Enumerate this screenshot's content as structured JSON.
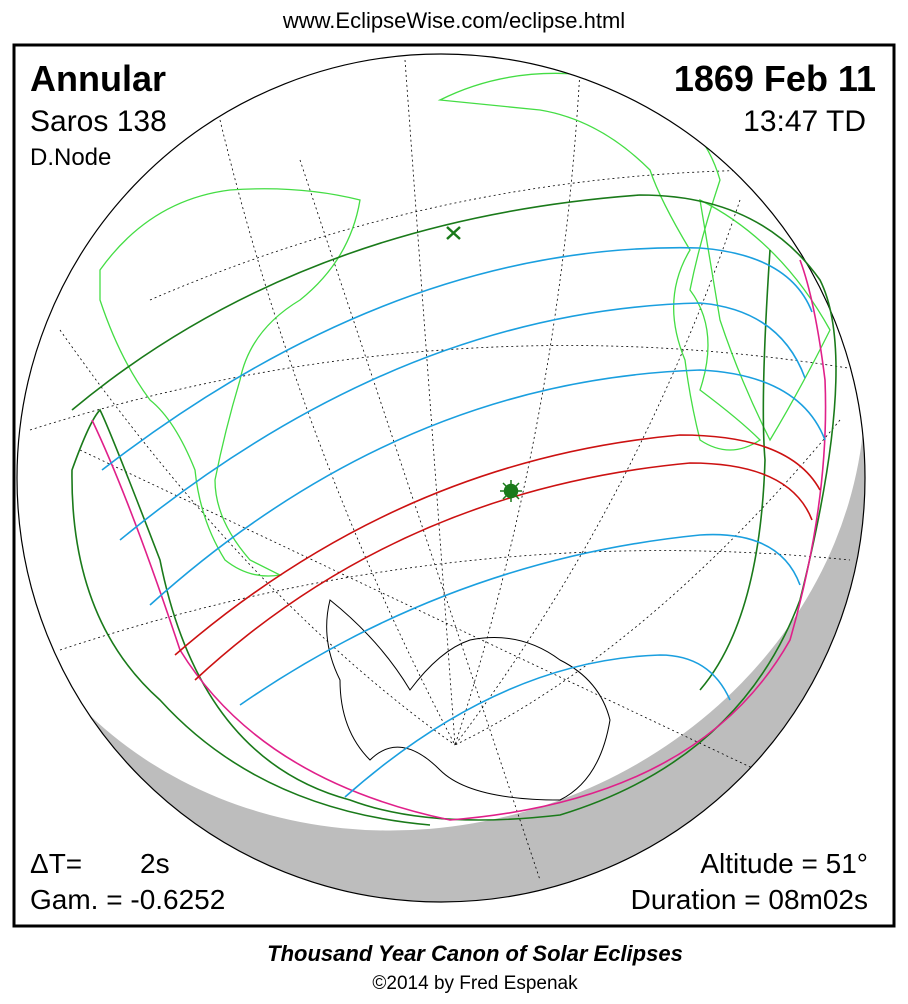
{
  "header": {
    "url": "www.EclipseWise.com/eclipse.html"
  },
  "eclipse": {
    "type": "Annular",
    "date": "1869 Feb 11",
    "saros": "Saros 138",
    "time": "13:47 TD",
    "node": "D.Node"
  },
  "parameters": {
    "delta_t_label": "ΔT=",
    "delta_t_value": "2s",
    "gamma": "Gam. = -0.6252",
    "altitude": "Altitude = 51°",
    "duration": "Duration = 08m02s"
  },
  "footer": {
    "title": "Thousand Year Canon of Solar Eclipses",
    "copyright": "©2014 by Fred Espenak"
  }
}
